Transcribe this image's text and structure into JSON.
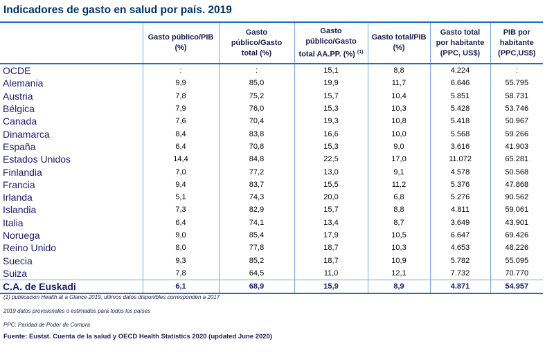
{
  "title": "Indicadores de gasto en salud por país. 2019",
  "table": {
    "columns": [
      {
        "line1": "",
        "line2": "",
        "line3": "",
        "sup": ""
      },
      {
        "line1": "Gasto público/PIB",
        "line2": "(%)",
        "line3": "",
        "sup": ""
      },
      {
        "line1": "Gasto",
        "line2": "público/Gasto",
        "line3": "total (%)",
        "sup": ""
      },
      {
        "line1": "Gasto",
        "line2": "público/Gasto",
        "line3": "total AA.PP. (%)",
        "sup": "(1)"
      },
      {
        "line1": "Gasto total/PIB",
        "line2": "(%)",
        "line3": "",
        "sup": ""
      },
      {
        "line1": "Gasto total",
        "line2": "por habitante",
        "line3": "(PPC, US$)",
        "sup": ""
      },
      {
        "line1": "PIB por",
        "line2": "habitante",
        "line3": "(PPC,US$)",
        "sup": ""
      }
    ],
    "rows": [
      [
        "OCDE",
        ":",
        ":",
        "15,1",
        "8,8",
        "4.224",
        ":"
      ],
      [
        "Alemania",
        "9,9",
        "85,0",
        "19,9",
        "11,7",
        "6.646",
        "55.795"
      ],
      [
        "Austria",
        "7,8",
        "75,2",
        "15,7",
        "10,4",
        "5.851",
        "58.731"
      ],
      [
        "Bélgica",
        "7,9",
        "76,0",
        "15,3",
        "10,3",
        "5.428",
        "53.746"
      ],
      [
        "Canada",
        "7,6",
        "70,4",
        "19,3",
        "10,8",
        "5.418",
        "50.967"
      ],
      [
        "Dinamarca",
        "8,4",
        "83,8",
        "16,6",
        "10,0",
        "5.568",
        "59.266"
      ],
      [
        "España",
        "6,4",
        "70,8",
        "15,3",
        "9,0",
        "3.616",
        "41.903"
      ],
      [
        "Estados Unidos",
        "14,4",
        "84,8",
        "22,5",
        "17,0",
        "11.072",
        "65.281"
      ],
      [
        "Finlandia",
        "7,0",
        "77,2",
        "13,0",
        "9,1",
        "4.578",
        "50.568"
      ],
      [
        "Francia",
        "9,4",
        "83,7",
        "15,5",
        "11,2",
        "5.376",
        "47.868"
      ],
      [
        "Irlanda",
        "5,1",
        "74,3",
        "20,0",
        "6,8",
        "5.276",
        "90.562"
      ],
      [
        "Islandia",
        "7,3",
        "82,9",
        "15,7",
        "8,8",
        "4.811",
        "59.061"
      ],
      [
        "Italia",
        "6,4",
        "74,1",
        "13,4",
        "8,7",
        "3.649",
        "43.901"
      ],
      [
        "Noruega",
        "9,0",
        "85,4",
        "17,9",
        "10,5",
        "6.647",
        "69.426"
      ],
      [
        "Reino Unido",
        "8,0",
        "77,8",
        "18,7",
        "10,3",
        "4.653",
        "48.226"
      ],
      [
        "Suecia",
        "9,3",
        "85,2",
        "18,7",
        "10,9",
        "5.782",
        "55.095"
      ],
      [
        "Suiza",
        "7,8",
        "64,5",
        "11,0",
        "12,1",
        "7.732",
        "70.770"
      ]
    ],
    "highlight_row": [
      "C.A. de Euskadi",
      "6,1",
      "68,9",
      "15,9",
      "8,9",
      "4.871",
      "54.957"
    ]
  },
  "notes": [
    "(1) publicacion Health at a Glance 2019, ultimos datos disponibles corresponden a 2017",
    "2019 datos provisionales o estimados para todos los países",
    "PPC: Paridad de Poder de Compra"
  ],
  "source": "Fuente: Eustat. Cuenta de la salud y OECD Health Statistics 2020 (updated June 2020)",
  "colors": {
    "title": "#003366",
    "rule": "#1a6fc4",
    "grid": "#6fa8dc",
    "country_text": "#1a1a6e"
  }
}
